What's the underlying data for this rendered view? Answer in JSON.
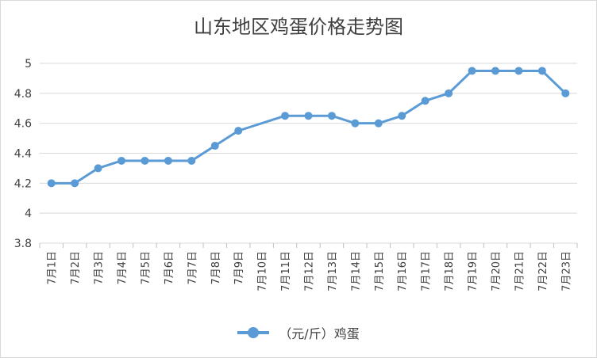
{
  "chart_data": {
    "type": "line",
    "title": "山东地区鸡蛋价格走势图",
    "xlabel": "",
    "ylabel": "",
    "ylim": [
      3.8,
      5.0
    ],
    "yticks": [
      "3.8",
      "4",
      "4.2",
      "4.4",
      "4.6",
      "4.8",
      "5"
    ],
    "grid": true,
    "legend_position": "bottom",
    "categories": [
      "7月1日",
      "7月2日",
      "7月3日",
      "7月4日",
      "7月5日",
      "7月6日",
      "7月7日",
      "7月8日",
      "7月9日",
      "7月10日",
      "7月11日",
      "7月12日",
      "7月13日",
      "7月14日",
      "7月15日",
      "7月16日",
      "7月17日",
      "7月18日",
      "7月19日",
      "7月20日",
      "7月21日",
      "7月22日",
      "7月23日"
    ],
    "series": [
      {
        "name": "（元/斤）鸡蛋",
        "color": "#5b9bd5",
        "values": [
          4.2,
          4.2,
          4.3,
          4.35,
          4.35,
          4.35,
          4.35,
          4.45,
          4.55,
          null,
          4.65,
          4.65,
          4.65,
          4.6,
          4.6,
          4.65,
          4.75,
          4.8,
          4.95,
          4.95,
          4.95,
          4.95,
          4.8
        ]
      }
    ]
  }
}
